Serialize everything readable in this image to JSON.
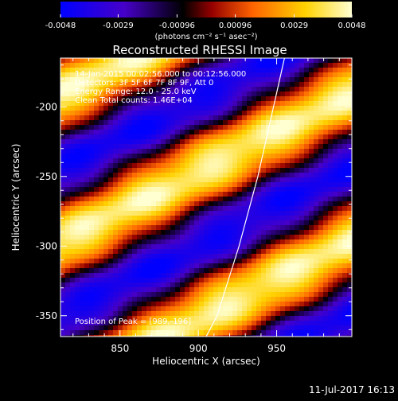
{
  "chart_data": {
    "type": "heatmap",
    "title": "Reconstructed RHESSI Image",
    "xlabel": "Heliocentric X (arcsec)",
    "ylabel": "Heliocentric Y (arcsec)",
    "xlim": [
      812,
      998
    ],
    "ylim": [
      -365,
      -165
    ],
    "x_ticks": [
      850,
      900,
      950
    ],
    "x_tick_labels": [
      "850",
      "900",
      "950"
    ],
    "y_ticks": [
      -350,
      -300,
      -250,
      -200
    ],
    "y_tick_labels": [
      "-350",
      "-300",
      "-250",
      "-200"
    ],
    "colorbar": {
      "range": [
        -0.0048,
        0.0048
      ],
      "ticks": [
        -0.0048,
        -0.0029,
        -0.00096,
        0.00096,
        0.0029,
        0.0048
      ],
      "tick_labels": [
        "-0.0048",
        "-0.0029",
        "-0.00096",
        "0.00096",
        "0.0029",
        "0.0048"
      ],
      "unit_label": "(photons cm⁻² s⁻¹ asec⁻²)",
      "colors": [
        "#0000ff",
        "#3a00c8",
        "#000000",
        "#b40000",
        "#ff6a00",
        "#ffd200",
        "#ffffd0"
      ]
    },
    "annotations": [
      "14-Jan-2015 00:02:56.000 to 00:12:56.000",
      "Detectors: 3F 5F 6F 7F 8F 9F, Att 0",
      "Energy Range: 12.0 - 25.0 keV",
      "Clean      Total counts: 1.46E+04",
      "Position of Peak = [989,-196]"
    ],
    "pattern": {
      "description_kind": "diagonal fringe stripes",
      "stripe_direction": [
        0.57,
        -1.0
      ],
      "fringe_period_arcsec": 92,
      "peak": [
        989,
        -196
      ]
    },
    "limb_curve": {
      "points": [
        [
          955,
          -165
        ],
        [
          948,
          -200
        ],
        [
          938,
          -250
        ],
        [
          926,
          -300
        ],
        [
          912,
          -350
        ],
        [
          905,
          -365
        ]
      ]
    }
  },
  "footer": {
    "date": "11-Jul-2017 16:13"
  }
}
